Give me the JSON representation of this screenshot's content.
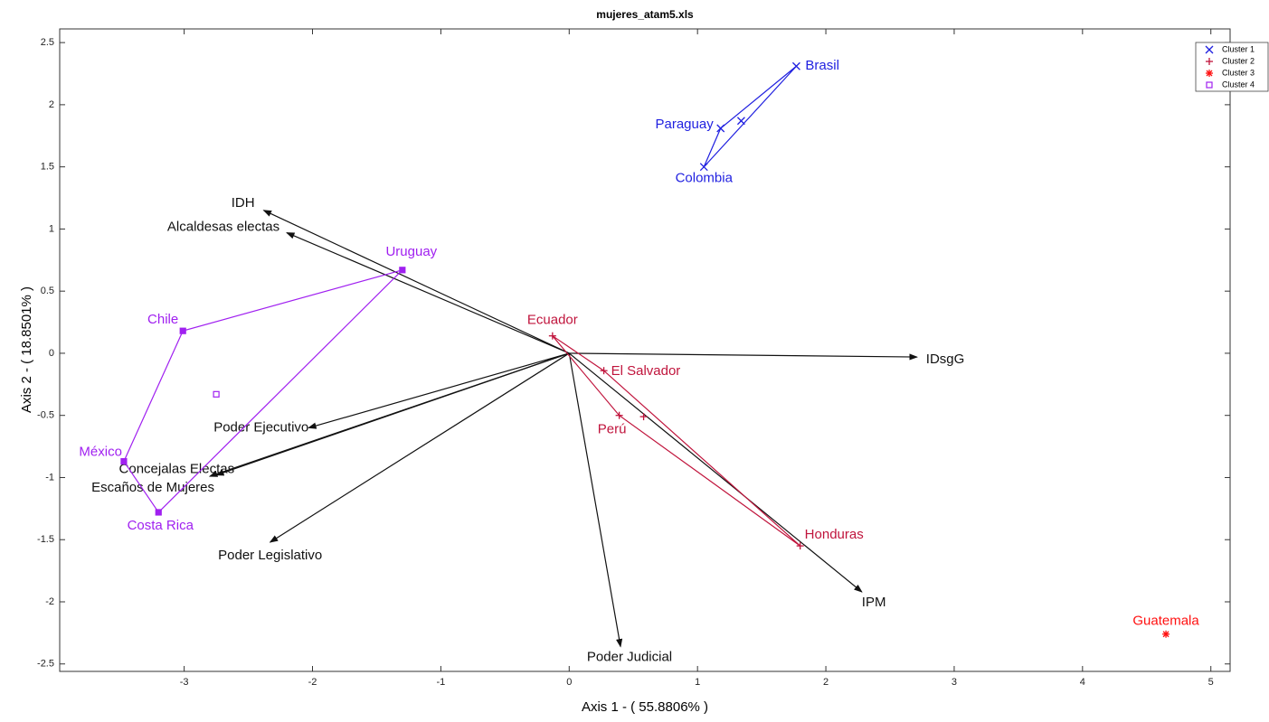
{
  "chart_data": {
    "type": "scatter",
    "title": "mujeres_atam5.xls",
    "x_label": "Axis 1 - ( 55.8806% )",
    "y_label": "Axis 2 - ( 18.8501% )",
    "xlim": [
      -3.97,
      5.15
    ],
    "ylim": [
      -2.56,
      2.61
    ],
    "xticks": [
      -3,
      -2,
      -1,
      0,
      1,
      2,
      3,
      4,
      5
    ],
    "yticks": [
      -2.5,
      -2,
      -1.5,
      -1,
      -0.5,
      0,
      0.5,
      1,
      1.5,
      2,
      2.5
    ],
    "legend": "top-right",
    "series": [
      {
        "name": "Cluster 1",
        "color": "#1f1fe0",
        "marker": "x",
        "points": [
          {
            "label": "Brasil",
            "x": 1.77,
            "y": 2.31
          },
          {
            "label": "Paraguay",
            "x": 1.18,
            "y": 1.81
          },
          {
            "label": "Colombia",
            "x": 1.05,
            "y": 1.5
          }
        ],
        "centroid": {
          "x": 1.34,
          "y": 1.87
        }
      },
      {
        "name": "Cluster 2",
        "color": "#c0143c",
        "marker": "+",
        "points": [
          {
            "label": "Ecuador",
            "x": -0.13,
            "y": 0.14
          },
          {
            "label": "El Salvador",
            "x": 0.27,
            "y": -0.14
          },
          {
            "label": "Perú",
            "x": 0.39,
            "y": -0.5
          },
          {
            "label": "Honduras",
            "x": 1.8,
            "y": -1.55
          }
        ],
        "centroid": {
          "x": 0.58,
          "y": -0.51
        }
      },
      {
        "name": "Cluster 3",
        "color": "#ff1010",
        "marker": "*",
        "points": [
          {
            "label": "Guatemala",
            "x": 4.65,
            "y": -2.26
          }
        ]
      },
      {
        "name": "Cluster 4",
        "color": "#a020f0",
        "marker": "square",
        "points": [
          {
            "label": "Uruguay",
            "x": -1.3,
            "y": 0.67
          },
          {
            "label": "Chile",
            "x": -3.01,
            "y": 0.18
          },
          {
            "label": "México",
            "x": -3.47,
            "y": -0.87
          },
          {
            "label": "Costa Rica",
            "x": -3.2,
            "y": -1.28
          }
        ],
        "centroid": {
          "x": -2.75,
          "y": -0.33
        }
      }
    ],
    "vectors": [
      {
        "label": "IDH",
        "x": -2.38,
        "y": 1.15
      },
      {
        "label": "Alcaldesas electas",
        "x": -2.2,
        "y": 0.97
      },
      {
        "label": "IDsgG",
        "x": 2.71,
        "y": -0.03
      },
      {
        "label": "IPM",
        "x": 2.28,
        "y": -1.92
      },
      {
        "label": "Poder Judicial",
        "x": 0.4,
        "y": -2.36
      },
      {
        "label": "Poder Legislativo",
        "x": -2.33,
        "y": -1.52
      },
      {
        "label": "Poder Ejecutivo",
        "x": -2.03,
        "y": -0.6
      },
      {
        "label": "Concejalas Electas",
        "x": -2.75,
        "y": -0.98
      },
      {
        "label": "Escaños de Mujeres",
        "x": -2.8,
        "y": -0.99
      }
    ],
    "vector_color": "#111111"
  }
}
